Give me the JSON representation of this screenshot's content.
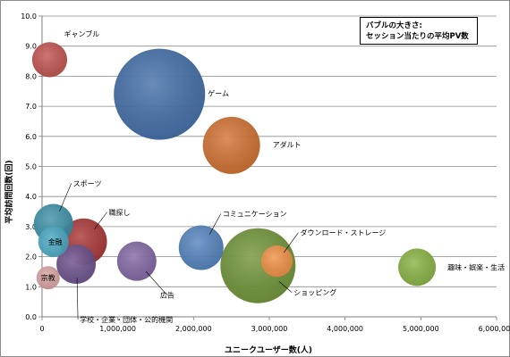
{
  "chart_data": {
    "type": "bubble",
    "xlabel": "ユニークユーザー数(人)",
    "ylabel": "平均訪問回数(回)",
    "note_lines": [
      "バブルの大きさ:",
      "セッション当たりの平均PV数"
    ],
    "xlim": [
      0,
      6000000
    ],
    "ylim": [
      0,
      10
    ],
    "x_ticks": [
      {
        "v": 0,
        "t": "0"
      },
      {
        "v": 1000000,
        "t": "1,000,000"
      },
      {
        "v": 2000000,
        "t": "2,000,000"
      },
      {
        "v": 3000000,
        "t": "3,000,000"
      },
      {
        "v": 4000000,
        "t": "4,000,000"
      },
      {
        "v": 5000000,
        "t": "5,000,000"
      },
      {
        "v": 6000000,
        "t": "6,000,000"
      }
    ],
    "y_ticks": [
      {
        "v": 0,
        "t": "0.0"
      },
      {
        "v": 1,
        "t": "1.0"
      },
      {
        "v": 2,
        "t": "2.0"
      },
      {
        "v": 3,
        "t": "3.0"
      },
      {
        "v": 4,
        "t": "4.0"
      },
      {
        "v": 5,
        "t": "5.0"
      },
      {
        "v": 6,
        "t": "6.0"
      },
      {
        "v": 7,
        "t": "7.0"
      },
      {
        "v": 8,
        "t": "8.0"
      },
      {
        "v": 9,
        "t": "9.0"
      },
      {
        "v": 10,
        "t": "10.0"
      }
    ],
    "grid": "horizontal",
    "series": [
      {
        "name": "ギャンブル",
        "x": 100000,
        "y": 8.55,
        "size": 9.8,
        "color": "#c0504d"
      },
      {
        "name": "ゲーム",
        "x": 1550000,
        "y": 7.4,
        "size": 25.5,
        "color": "#3e6ca6"
      },
      {
        "name": "アダルト",
        "x": 2500000,
        "y": 5.7,
        "size": 16.0,
        "color": "#d16e2c"
      },
      {
        "name": "職探し",
        "x": 550000,
        "y": 2.5,
        "size": 13.0,
        "color": "#a83232"
      },
      {
        "name": "スポーツ",
        "x": 150000,
        "y": 3.1,
        "size": 11.0,
        "color": "#3a8fa8"
      },
      {
        "name": "趣味・娯楽・生活",
        "x": 4950000,
        "y": 1.65,
        "size": 10.5,
        "color": "#86b13f"
      },
      {
        "name": "ショッピング",
        "x": 2850000,
        "y": 1.7,
        "size": 21.0,
        "color": "#6e9234"
      },
      {
        "name": "ダウンロード・ストレージ",
        "x": 3100000,
        "y": 1.85,
        "size": 8.8,
        "color": "#f7944a"
      },
      {
        "name": "コミュニケーション",
        "x": 2100000,
        "y": 2.3,
        "size": 12.5,
        "color": "#4f81bd"
      },
      {
        "name": "広告",
        "x": 1250000,
        "y": 1.85,
        "size": 11.0,
        "color": "#8064a2"
      },
      {
        "name": "学校・企業・団体・公的機関",
        "x": 450000,
        "y": 1.75,
        "size": 11.0,
        "color": "#6a4f8c"
      },
      {
        "name": "金融",
        "x": 150000,
        "y": 2.5,
        "size": 8.5,
        "color": "#4bacc6"
      },
      {
        "name": "宗教",
        "x": 80000,
        "y": 1.3,
        "size": 6.5,
        "color": "#d9a3a1"
      }
    ]
  }
}
